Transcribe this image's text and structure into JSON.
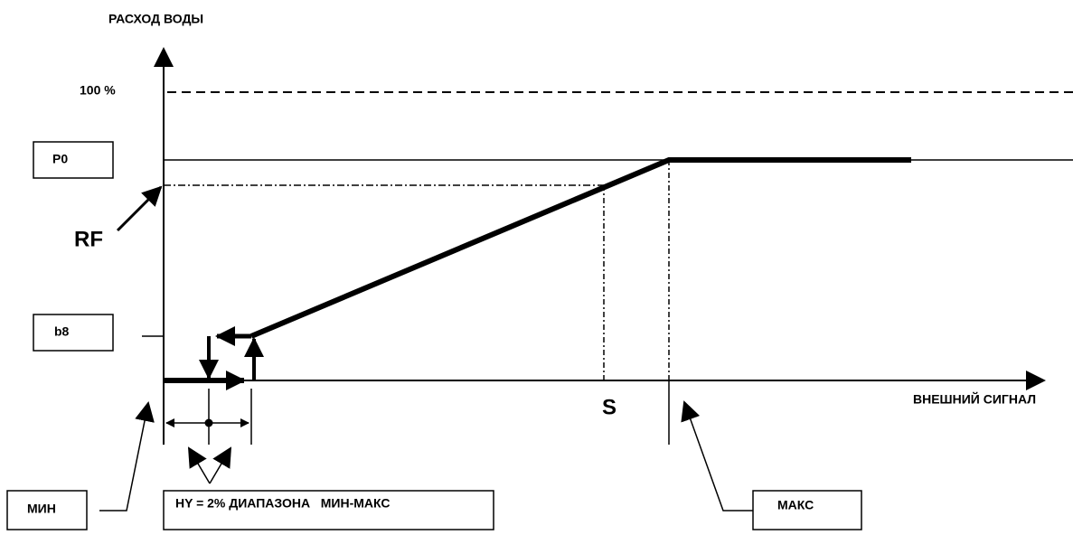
{
  "diagram": {
    "y_axis_label": "РАСХОД ВОДЫ",
    "x_axis_label": "ВНЕШНИЙ СИГНАЛ",
    "labels": {
      "full": "100 %",
      "p0": "P0",
      "rf": "RF",
      "b8": "b8",
      "s": "S"
    },
    "boxes": {
      "min": "МИН",
      "hy": "HY = 2% ДИАПАЗОНА   МИН-МАКС",
      "max": "МАКС"
    }
  }
}
